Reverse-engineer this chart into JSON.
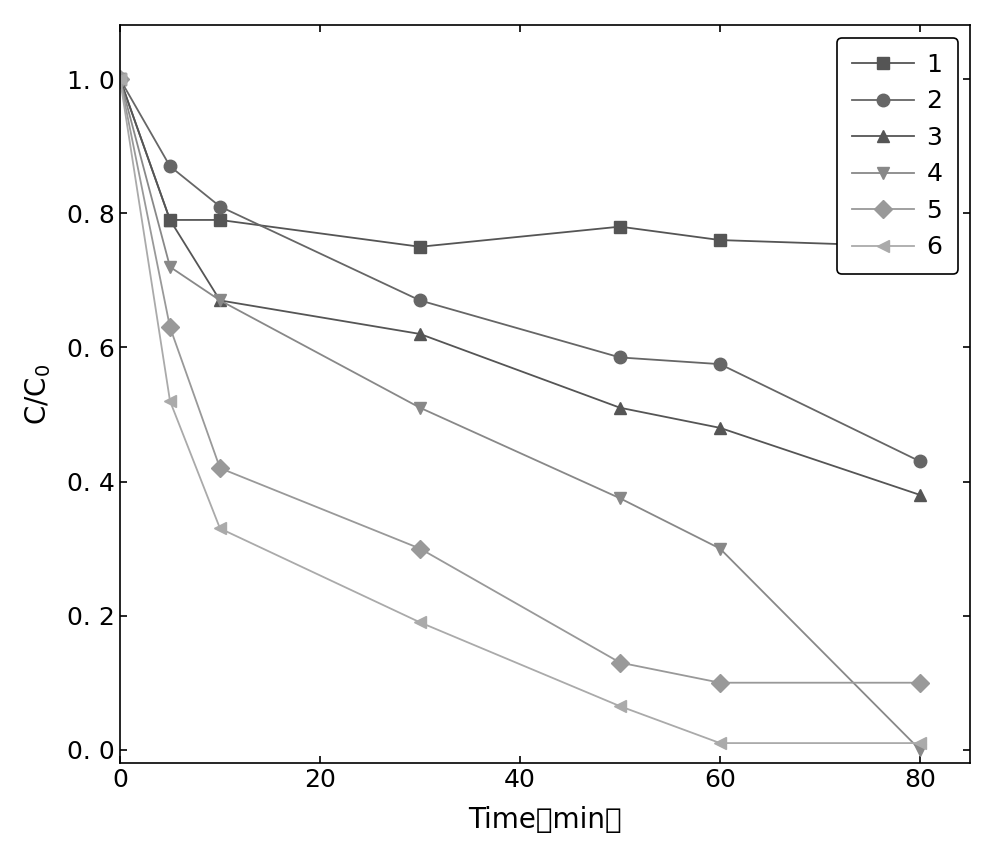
{
  "series": [
    {
      "label": "1",
      "x": [
        0,
        5,
        10,
        30,
        50,
        60,
        80
      ],
      "y": [
        1.0,
        0.79,
        0.79,
        0.75,
        0.78,
        0.76,
        0.75
      ],
      "marker": "s",
      "color": "#555555"
    },
    {
      "label": "2",
      "x": [
        0,
        5,
        10,
        30,
        50,
        60,
        80
      ],
      "y": [
        1.0,
        0.87,
        0.81,
        0.67,
        0.585,
        0.575,
        0.43
      ],
      "marker": "o",
      "color": "#666666"
    },
    {
      "label": "3",
      "x": [
        0,
        5,
        10,
        30,
        50,
        60,
        80
      ],
      "y": [
        1.0,
        0.79,
        0.67,
        0.62,
        0.51,
        0.48,
        0.38
      ],
      "marker": "^",
      "color": "#555555"
    },
    {
      "label": "4",
      "x": [
        0,
        5,
        10,
        30,
        50,
        60,
        80
      ],
      "y": [
        1.0,
        0.72,
        0.67,
        0.51,
        0.375,
        0.3,
        0.0
      ],
      "marker": "v",
      "color": "#888888"
    },
    {
      "label": "5",
      "x": [
        0,
        5,
        10,
        30,
        50,
        60,
        80
      ],
      "y": [
        1.0,
        0.63,
        0.42,
        0.3,
        0.13,
        0.1,
        0.1
      ],
      "marker": "D",
      "color": "#999999"
    },
    {
      "label": "6",
      "x": [
        0,
        5,
        10,
        30,
        50,
        60,
        80
      ],
      "y": [
        1.0,
        0.52,
        0.33,
        0.19,
        0.065,
        0.01,
        0.01
      ],
      "marker": "<",
      "color": "#aaaaaa"
    }
  ],
  "xlabel": "Time（min）",
  "ylabel": "C/C",
  "xlim": [
    0,
    85
  ],
  "ylim": [
    -0.02,
    1.08
  ],
  "xticks": [
    0,
    20,
    40,
    60,
    80
  ],
  "yticks": [
    0.0,
    0.2,
    0.4,
    0.6,
    0.8,
    1.0
  ],
  "ytick_labels": [
    "0. 0",
    "0. 2",
    "0. 4",
    "0. 6",
    "0. 8",
    "1. 0"
  ],
  "xtick_labels": [
    "0",
    "20",
    "40",
    "60",
    "80"
  ],
  "background_color": "#ffffff",
  "legend_loc": "upper right",
  "linewidth": 1.3,
  "markersize": 9,
  "title_fontsize": 18,
  "tick_fontsize": 18,
  "label_fontsize": 20
}
